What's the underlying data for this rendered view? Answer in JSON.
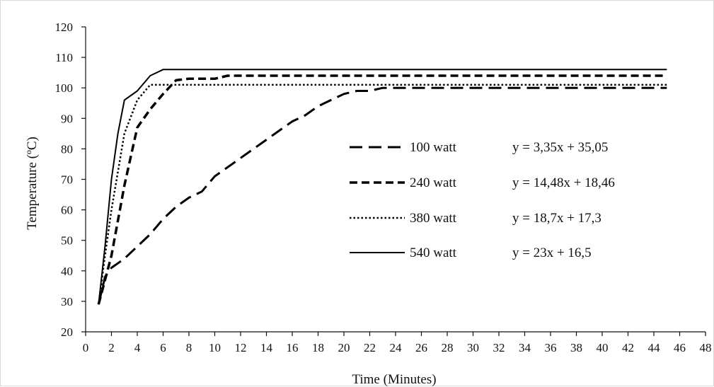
{
  "chart_data": {
    "type": "line",
    "xlabel": "Time (Minutes)",
    "ylabel": "Temperature (ºC)",
    "xlim": [
      0,
      48
    ],
    "ylim": [
      20,
      120
    ],
    "x_ticks": [
      "0",
      "2",
      "4",
      "6",
      "8",
      "10",
      "12",
      "14",
      "16",
      "18",
      "20",
      "22",
      "24",
      "26",
      "28",
      "30",
      "32",
      "34",
      "36",
      "38",
      "40",
      "42",
      "44",
      "46",
      "48"
    ],
    "y_ticks": [
      "20",
      "30",
      "40",
      "50",
      "60",
      "70",
      "80",
      "90",
      "100",
      "110",
      "120"
    ],
    "grid": false,
    "legend_placement": "center-right",
    "series": [
      {
        "name": "100 watt",
        "style": "long-dash",
        "equation": "y = 3,35x + 35,05",
        "points": [
          [
            1,
            29
          ],
          [
            1.5,
            38
          ],
          [
            2,
            41
          ],
          [
            3,
            44
          ],
          [
            4,
            48
          ],
          [
            5,
            52
          ],
          [
            6,
            57
          ],
          [
            7,
            61
          ],
          [
            8,
            64
          ],
          [
            9,
            66
          ],
          [
            10,
            71
          ],
          [
            11,
            74
          ],
          [
            12,
            77
          ],
          [
            13,
            80
          ],
          [
            14,
            83
          ],
          [
            15,
            86
          ],
          [
            16,
            89
          ],
          [
            17,
            91
          ],
          [
            18,
            94
          ],
          [
            19,
            96
          ],
          [
            20,
            98
          ],
          [
            21,
            99
          ],
          [
            22,
            99
          ],
          [
            23,
            100
          ],
          [
            45,
            100
          ]
        ]
      },
      {
        "name": "240 watt",
        "style": "dash",
        "equation": "y = 14,48x + 18,46",
        "points": [
          [
            1,
            29
          ],
          [
            2,
            45
          ],
          [
            3,
            68
          ],
          [
            4,
            87
          ],
          [
            5,
            93
          ],
          [
            6,
            98
          ],
          [
            7,
            102.5
          ],
          [
            8,
            103
          ],
          [
            9,
            103
          ],
          [
            10,
            103
          ],
          [
            11,
            104
          ],
          [
            45,
            104
          ]
        ]
      },
      {
        "name": "380 watt",
        "style": "dot",
        "equation": "y = 18,7x + 17,3",
        "points": [
          [
            1,
            29
          ],
          [
            1.5,
            45
          ],
          [
            2,
            60
          ],
          [
            3,
            85
          ],
          [
            4,
            96
          ],
          [
            5,
            101
          ],
          [
            45,
            101
          ]
        ]
      },
      {
        "name": "540 watt",
        "style": "solid",
        "equation": "y = 23x + 16,5",
        "points": [
          [
            1,
            29
          ],
          [
            1.5,
            48
          ],
          [
            2,
            70
          ],
          [
            2.5,
            85
          ],
          [
            3,
            96
          ],
          [
            3.5,
            97.5
          ],
          [
            4,
            99
          ],
          [
            5,
            104
          ],
          [
            6,
            106
          ],
          [
            7,
            106
          ],
          [
            45,
            106
          ]
        ]
      }
    ]
  }
}
